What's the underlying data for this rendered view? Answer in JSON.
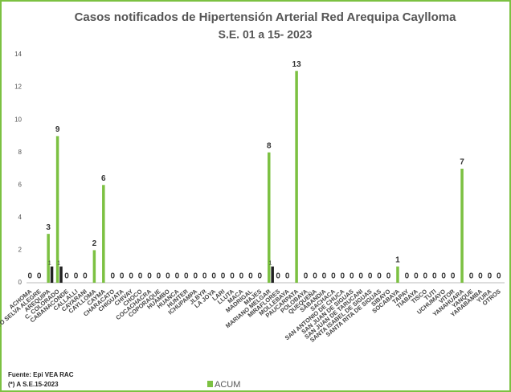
{
  "chart_data": {
    "type": "bar",
    "title": "Casos notificados de Hipertensión Arterial Red Arequipa  Caylloma",
    "subtitle": "S.E. 01 a 15- 2023",
    "categories": [
      "ACHOMA",
      "ALTO SELVA ALEGRE",
      "AREQUIPA",
      "C. COLORADO",
      "CABANACONDE",
      "CALLALLI",
      "CAYARANI",
      "CAYLLOMA",
      "CAYMA",
      "CHARACATO",
      "CHIGUATA",
      "CHIVAY",
      "CHOCO",
      "COCACHACRA",
      "COPORAQUE",
      "HUAMBO",
      "HUANCA",
      "HUNTER",
      "ICHUPAMPA",
      "JLBYR",
      "LA JOYA",
      "LARI",
      "LLUTA",
      "MACA",
      "MADRIGAL",
      "MAJES",
      "MARIANO MELGAR",
      "MIRAFLORES",
      "MOLLEBAYA",
      "PAUCARPATA",
      "POLOBAYA",
      "QUEQUEÑA",
      "SABANDIA",
      "SACHACA",
      "SAN ANTONIO DE CHUCA",
      "SAN JUAN DE SIGUAS",
      "SAN JUAN DE TARUCANI",
      "SANTA ISABEL DE SIGUAS",
      "SANTA RITA DE SIGUAS",
      "SIBAYO",
      "SOCABAYA",
      "TAPAY",
      "TIABAYA",
      "TISCO",
      "TUTI",
      "UCHUMAYO",
      "VITOR",
      "YANAHUARA",
      "YANQUE",
      "YARABAMBA",
      "YURA",
      "OTROS"
    ],
    "series": [
      {
        "name": "ACUM",
        "color": "#7cc142",
        "values": [
          0,
          0,
          3,
          9,
          0,
          0,
          0,
          2,
          6,
          0,
          0,
          0,
          0,
          0,
          0,
          0,
          0,
          0,
          0,
          0,
          0,
          0,
          0,
          0,
          0,
          0,
          8,
          0,
          0,
          13,
          0,
          0,
          0,
          0,
          0,
          0,
          0,
          0,
          0,
          0,
          1,
          0,
          0,
          0,
          0,
          0,
          0,
          7,
          0,
          0,
          0,
          0
        ]
      },
      {
        "color": "#222222",
        "values": [
          null,
          null,
          1,
          1,
          null,
          null,
          null,
          null,
          null,
          null,
          null,
          null,
          null,
          null,
          null,
          null,
          null,
          null,
          null,
          null,
          null,
          null,
          null,
          null,
          null,
          null,
          1,
          null,
          null,
          null,
          null,
          null,
          null,
          null,
          null,
          null,
          null,
          null,
          null,
          null,
          null,
          null,
          null,
          null,
          null,
          null,
          null,
          null,
          null,
          null,
          null,
          null
        ]
      }
    ],
    "ylim": [
      0,
      14
    ],
    "yticks": [
      0,
      2,
      4,
      6,
      8,
      10,
      12,
      14
    ],
    "notes": [
      "Fuente: Epi VEA RAC",
      "(*) A S.E.15-2023"
    ]
  }
}
